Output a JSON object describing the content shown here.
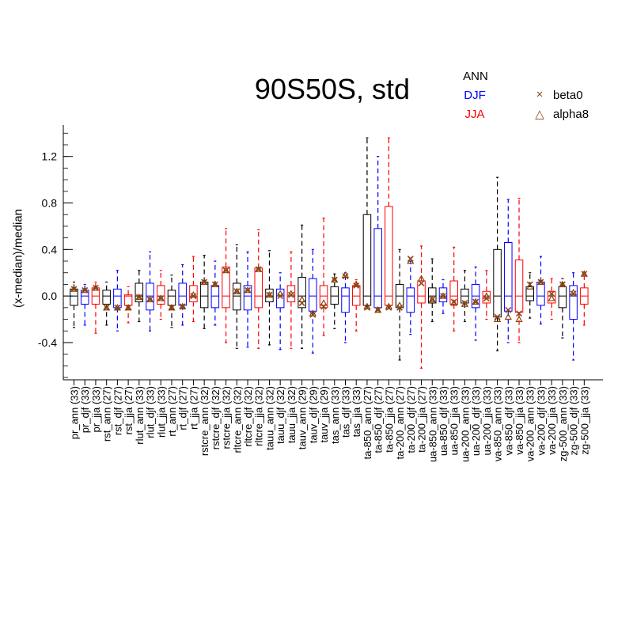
{
  "chart_data": {
    "type": "boxplot",
    "title": "90S50S, std",
    "ylabel": "(x-median)/median",
    "ylim": [
      -0.72,
      1.47
    ],
    "yticks": [
      -0.4,
      0.0,
      0.4,
      0.8,
      1.2
    ],
    "ytick_labels": [
      "-0.4",
      "0.0",
      "0.4",
      "0.8",
      "1.2"
    ],
    "season_legend": [
      {
        "label": "ANN",
        "color": "#000000"
      },
      {
        "label": "DJF",
        "color": "#0000ff"
      },
      {
        "label": "JJA",
        "color": "#ff0000"
      }
    ],
    "marker_legend": [
      {
        "label": "beta0",
        "symbol": "×",
        "color": "#8b4513"
      },
      {
        "label": "alpha8",
        "symbol": "△",
        "color": "#8b4513"
      }
    ],
    "categories": [
      "pr_ann (33)",
      "pr_djf (33)",
      "pr_jja (33)",
      "rst_ann (27)",
      "rst_djf (27)",
      "rst_jja (27)",
      "rlut_ann (33)",
      "rlut_djf (33)",
      "rlut_jja (33)",
      "rt_ann (27)",
      "rt_djf (27)",
      "rt_jja (27)",
      "rstcre_ann (32)",
      "rstcre_djf (32)",
      "rstcre_jja (32)",
      "rltcre_ann (32)",
      "rltcre_djf (32)",
      "rltcre_jja (32)",
      "tauu_ann (32)",
      "tauu_djf (32)",
      "tauu_jja (32)",
      "tauv_ann (29)",
      "tauv_djf (29)",
      "tauv_jja (29)",
      "tas_ann (33)",
      "tas_djf (33)",
      "tas_jja (33)",
      "ta-850_ann (27)",
      "ta-850_djf (27)",
      "ta-850_jja (27)",
      "ta-200_ann (27)",
      "ta-200_djf (27)",
      "ta-200_jja (27)",
      "ua-850_ann (33)",
      "ua-850_djf (33)",
      "ua-850_jja (33)",
      "ua-200_ann (33)",
      "ua-200_djf (33)",
      "ua-200_jja (33)",
      "va-850_ann (33)",
      "va-850_djf (33)",
      "va-850_jja (33)",
      "va-200_ann (33)",
      "va-200_djf (33)",
      "va-200_jja (33)",
      "zg-500_ann (33)",
      "zg-500_djf (33)",
      "zg-500_jja (33)"
    ],
    "boxes": [
      {
        "wlo": -0.27,
        "q1": -0.08,
        "med": 0.0,
        "q3": 0.06,
        "whi": 0.12,
        "beta0": 0.06,
        "alpha8": 0.06
      },
      {
        "wlo": -0.25,
        "q1": -0.07,
        "med": 0.0,
        "q3": 0.05,
        "whi": 0.1,
        "beta0": 0.05,
        "alpha8": 0.05
      },
      {
        "wlo": -0.32,
        "q1": -0.07,
        "med": 0.0,
        "q3": 0.07,
        "whi": 0.12,
        "beta0": 0.07,
        "alpha8": 0.07
      },
      {
        "wlo": -0.25,
        "q1": -0.07,
        "med": 0.0,
        "q3": 0.05,
        "whi": 0.12,
        "beta0": -0.1,
        "alpha8": -0.1
      },
      {
        "wlo": -0.3,
        "q1": -0.1,
        "med": 0.0,
        "q3": 0.06,
        "whi": 0.22,
        "beta0": -0.1,
        "alpha8": -0.1
      },
      {
        "wlo": -0.23,
        "q1": -0.08,
        "med": 0.0,
        "q3": 0.01,
        "whi": 0.08,
        "beta0": -0.1,
        "alpha8": -0.1
      },
      {
        "wlo": -0.22,
        "q1": -0.05,
        "med": 0.0,
        "q3": 0.11,
        "whi": 0.22,
        "beta0": -0.01,
        "alpha8": -0.01
      },
      {
        "wlo": -0.3,
        "q1": -0.12,
        "med": 0.0,
        "q3": 0.11,
        "whi": 0.38,
        "beta0": -0.03,
        "alpha8": -0.03
      },
      {
        "wlo": -0.2,
        "q1": -0.07,
        "med": 0.0,
        "q3": 0.09,
        "whi": 0.22,
        "beta0": -0.02,
        "alpha8": -0.02
      },
      {
        "wlo": -0.27,
        "q1": -0.08,
        "med": 0.0,
        "q3": 0.05,
        "whi": 0.18,
        "beta0": -0.1,
        "alpha8": -0.1
      },
      {
        "wlo": -0.25,
        "q1": -0.08,
        "med": 0.0,
        "q3": 0.11,
        "whi": 0.27,
        "beta0": -0.09,
        "alpha8": -0.09
      },
      {
        "wlo": -0.22,
        "q1": -0.05,
        "med": 0.0,
        "q3": 0.09,
        "whi": 0.34,
        "beta0": -0.0,
        "alpha8": 0.01
      },
      {
        "wlo": -0.28,
        "q1": -0.1,
        "med": 0.0,
        "q3": 0.12,
        "whi": 0.35,
        "beta0": 0.12,
        "alpha8": 0.12
      },
      {
        "wlo": -0.25,
        "q1": -0.1,
        "med": 0.0,
        "q3": 0.09,
        "whi": 0.3,
        "beta0": 0.1,
        "alpha8": 0.1
      },
      {
        "wlo": -0.4,
        "q1": -0.1,
        "med": 0.0,
        "q3": 0.25,
        "whi": 0.58,
        "beta0": 0.22,
        "alpha8": 0.22
      },
      {
        "wlo": -0.45,
        "q1": -0.12,
        "med": 0.0,
        "q3": 0.11,
        "whi": 0.44,
        "beta0": 0.04,
        "alpha8": 0.04
      },
      {
        "wlo": -0.44,
        "q1": -0.12,
        "med": 0.0,
        "q3": 0.09,
        "whi": 0.38,
        "beta0": 0.05,
        "alpha8": 0.05
      },
      {
        "wlo": -0.45,
        "q1": -0.1,
        "med": 0.0,
        "q3": 0.24,
        "whi": 0.57,
        "beta0": 0.23,
        "alpha8": 0.23
      },
      {
        "wlo": -0.42,
        "q1": -0.05,
        "med": 0.0,
        "q3": 0.06,
        "whi": 0.39,
        "beta0": 0.01,
        "alpha8": 0.01
      },
      {
        "wlo": -0.46,
        "q1": -0.1,
        "med": 0.0,
        "q3": 0.06,
        "whi": 0.2,
        "beta0": -0.0,
        "alpha8": 0.02
      },
      {
        "wlo": -0.45,
        "q1": -0.05,
        "med": 0.0,
        "q3": 0.09,
        "whi": 0.38,
        "beta0": 0.01,
        "alpha8": 0.02
      },
      {
        "wlo": -0.45,
        "q1": -0.1,
        "med": 0.0,
        "q3": 0.16,
        "whi": 0.61,
        "beta0": -0.06,
        "alpha8": -0.03
      },
      {
        "wlo": -0.49,
        "q1": -0.13,
        "med": 0.0,
        "q3": 0.15,
        "whi": 0.4,
        "beta0": -0.16,
        "alpha8": -0.15
      },
      {
        "wlo": -0.34,
        "q1": -0.1,
        "med": 0.0,
        "q3": 0.09,
        "whi": 0.67,
        "beta0": -0.09,
        "alpha8": -0.06
      },
      {
        "wlo": -0.28,
        "q1": -0.07,
        "med": 0.0,
        "q3": 0.08,
        "whi": 0.19,
        "beta0": 0.14,
        "alpha8": 0.14
      },
      {
        "wlo": -0.4,
        "q1": -0.14,
        "med": 0.0,
        "q3": 0.07,
        "whi": 0.2,
        "beta0": 0.17,
        "alpha8": 0.18
      },
      {
        "wlo": -0.3,
        "q1": -0.08,
        "med": 0.0,
        "q3": 0.09,
        "whi": 0.14,
        "beta0": 0.09,
        "alpha8": 0.1
      },
      {
        "wlo": -0.1,
        "q1": -0.08,
        "med": 0.0,
        "q3": 0.7,
        "whi": 1.36,
        "beta0": -0.1,
        "alpha8": -0.09
      },
      {
        "wlo": -0.12,
        "q1": -0.1,
        "med": 0.0,
        "q3": 0.58,
        "whi": 1.2,
        "beta0": -0.12,
        "alpha8": -0.12
      },
      {
        "wlo": -0.1,
        "q1": -0.08,
        "med": 0.0,
        "q3": 0.77,
        "whi": 1.36,
        "beta0": -0.1,
        "alpha8": -0.09
      },
      {
        "wlo": -0.55,
        "q1": -0.1,
        "med": 0.0,
        "q3": 0.1,
        "whi": 0.4,
        "beta0": -0.1,
        "alpha8": -0.08
      },
      {
        "wlo": -0.33,
        "q1": -0.14,
        "med": 0.0,
        "q3": 0.07,
        "whi": 0.3,
        "beta0": 0.32,
        "alpha8": 0.3
      },
      {
        "wlo": -0.62,
        "q1": -0.06,
        "med": 0.0,
        "q3": 0.13,
        "whi": 0.43,
        "beta0": 0.11,
        "alpha8": 0.15
      },
      {
        "wlo": -0.22,
        "q1": -0.06,
        "med": 0.0,
        "q3": 0.07,
        "whi": 0.32,
        "beta0": -0.03,
        "alpha8": -0.03
      },
      {
        "wlo": -0.15,
        "q1": -0.05,
        "med": 0.0,
        "q3": 0.07,
        "whi": 0.14,
        "beta0": 0.0,
        "alpha8": 0.0
      },
      {
        "wlo": -0.3,
        "q1": -0.07,
        "med": 0.0,
        "q3": 0.13,
        "whi": 0.42,
        "beta0": -0.05,
        "alpha8": -0.06
      },
      {
        "wlo": -0.22,
        "q1": -0.06,
        "med": 0.0,
        "q3": 0.06,
        "whi": 0.22,
        "beta0": -0.06,
        "alpha8": -0.07
      },
      {
        "wlo": -0.38,
        "q1": -0.1,
        "med": 0.0,
        "q3": 0.1,
        "whi": 0.25,
        "beta0": -0.05,
        "alpha8": -0.05
      },
      {
        "wlo": -0.2,
        "q1": -0.06,
        "med": 0.0,
        "q3": 0.04,
        "whi": 0.22,
        "beta0": -0.02,
        "alpha8": 0.0
      },
      {
        "wlo": -0.47,
        "q1": -0.18,
        "med": 0.0,
        "q3": 0.4,
        "whi": 1.02,
        "beta0": -0.18,
        "alpha8": -0.2
      },
      {
        "wlo": -0.4,
        "q1": -0.13,
        "med": 0.0,
        "q3": 0.46,
        "whi": 0.83,
        "beta0": -0.12,
        "alpha8": -0.18
      },
      {
        "wlo": -0.4,
        "q1": -0.14,
        "med": 0.0,
        "q3": 0.31,
        "whi": 0.84,
        "beta0": -0.15,
        "alpha8": -0.2
      },
      {
        "wlo": -0.19,
        "q1": -0.04,
        "med": 0.0,
        "q3": 0.08,
        "whi": 0.2,
        "beta0": 0.1,
        "alpha8": 0.08
      },
      {
        "wlo": -0.24,
        "q1": -0.08,
        "med": 0.0,
        "q3": 0.12,
        "whi": 0.34,
        "beta0": 0.12,
        "alpha8": 0.12
      },
      {
        "wlo": -0.2,
        "q1": -0.06,
        "med": 0.0,
        "q3": 0.04,
        "whi": 0.15,
        "beta0": 0.02,
        "alpha8": -0.02
      },
      {
        "wlo": -0.36,
        "q1": -0.1,
        "med": 0.0,
        "q3": 0.08,
        "whi": 0.15,
        "beta0": 0.1,
        "alpha8": 0.1
      },
      {
        "wlo": -0.55,
        "q1": -0.2,
        "med": 0.0,
        "q3": 0.09,
        "whi": 0.2,
        "beta0": 0.02,
        "alpha8": 0.03
      },
      {
        "wlo": -0.25,
        "q1": -0.07,
        "med": 0.0,
        "q3": 0.07,
        "whi": 0.2,
        "beta0": 0.19,
        "alpha8": 0.19
      }
    ]
  }
}
